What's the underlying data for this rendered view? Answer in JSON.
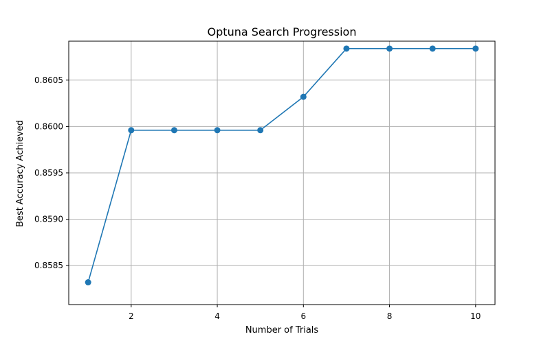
{
  "chart_data": {
    "type": "line",
    "title": "Optuna Search Progression",
    "xlabel": "Number of Trials",
    "ylabel": "Best Accuracy Achieved",
    "xlim": [
      0.55,
      10.45
    ],
    "ylim": [
      0.85808,
      0.86092
    ],
    "xticks": [
      2,
      4,
      6,
      8,
      10
    ],
    "xtick_labels": [
      "2",
      "4",
      "6",
      "8",
      "10"
    ],
    "yticks": [
      0.8585,
      0.859,
      0.8595,
      0.86,
      0.8605
    ],
    "ytick_labels": [
      "0.8585",
      "0.8590",
      "0.8595",
      "0.8600",
      "0.8605"
    ],
    "grid": true,
    "series": [
      {
        "color": "#1f77b4",
        "marker": "circle",
        "x": [
          1,
          2,
          3,
          4,
          5,
          6,
          7,
          8,
          9,
          10
        ],
        "y": [
          0.85832,
          0.85996,
          0.85996,
          0.85996,
          0.85996,
          0.86032,
          0.86084,
          0.86084,
          0.86084,
          0.86084
        ]
      }
    ]
  }
}
